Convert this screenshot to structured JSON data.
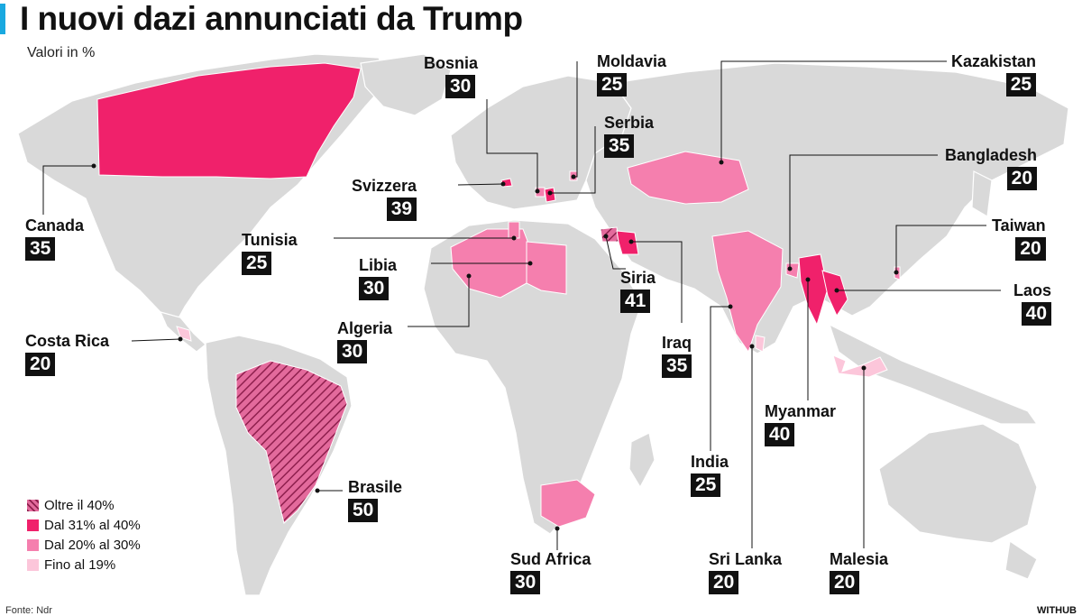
{
  "title": "I nuovi dazi annunciati da Trump",
  "subtitle": "Valori in %",
  "colors": {
    "accent": "#19a9e0",
    "land": "#d9d9d9",
    "over40": "#c8326e",
    "r31_40": "#f0216b",
    "r20_30": "#f57fae",
    "upto19": "#fcc6da",
    "text": "#111111"
  },
  "legend": [
    {
      "label": "Oltre il 40%",
      "key": "over40",
      "hatched": true
    },
    {
      "label": "Dal 31% al 40%",
      "key": "r31_40",
      "hatched": false
    },
    {
      "label": "Dal 20% al 30%",
      "key": "r20_30",
      "hatched": false
    },
    {
      "label": "Fino al 19%",
      "key": "upto19",
      "hatched": false
    }
  ],
  "countries": [
    {
      "name": "Bosnia",
      "value": "30"
    },
    {
      "name": "Moldavia",
      "value": "25"
    },
    {
      "name": "Kazakistan",
      "value": "25"
    },
    {
      "name": "Serbia",
      "value": "35"
    },
    {
      "name": "Bangladesh",
      "value": "20"
    },
    {
      "name": "Svizzera",
      "value": "39"
    },
    {
      "name": "Canada",
      "value": "35"
    },
    {
      "name": "Taiwan",
      "value": "20"
    },
    {
      "name": "Tunisia",
      "value": "25"
    },
    {
      "name": "Libia",
      "value": "30"
    },
    {
      "name": "Laos",
      "value": "40"
    },
    {
      "name": "Siria",
      "value": "41"
    },
    {
      "name": "Algeria",
      "value": "30"
    },
    {
      "name": "Costa Rica",
      "value": "20"
    },
    {
      "name": "Iraq",
      "value": "35"
    },
    {
      "name": "Myanmar",
      "value": "40"
    },
    {
      "name": "India",
      "value": "25"
    },
    {
      "name": "Brasile",
      "value": "50"
    },
    {
      "name": "Sud Africa",
      "value": "30"
    },
    {
      "name": "Sri Lanka",
      "value": "20"
    },
    {
      "name": "Malesia",
      "value": "20"
    }
  ],
  "footer": {
    "source": "Fonte: Ndr",
    "brand": "WITHUB"
  }
}
